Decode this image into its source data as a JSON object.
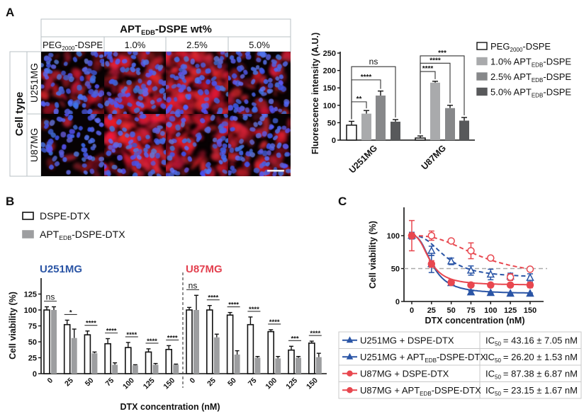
{
  "panel_labels": {
    "a": "A",
    "b": "B",
    "c": "C"
  },
  "panel_a": {
    "header": {
      "pre": "APT",
      "sub": "EDB",
      "post": "-DSPE wt%"
    },
    "columns": [
      {
        "pre": "PEG",
        "sub": "2000",
        "post": "-DSPE"
      },
      {
        "pre": "1.0%",
        "sub": "",
        "post": ""
      },
      {
        "pre": "2.5%",
        "sub": "",
        "post": ""
      },
      {
        "pre": "5.0%",
        "sub": "",
        "post": ""
      }
    ],
    "row_header": "Cell type",
    "rows": [
      "U251MG",
      "U87MG"
    ]
  },
  "chart_data": [
    {
      "id": "fluorescence",
      "type": "bar",
      "ylabel": "Fluorescence intensity (A.U.)",
      "ylim": [
        0,
        250
      ],
      "yticks": [
        0,
        50,
        100,
        150,
        200,
        250
      ],
      "categories": [
        "U251MG",
        "U87MG"
      ],
      "legend_position": "right",
      "series": [
        {
          "name": {
            "pre": "PEG",
            "sub": "2000",
            "post": "-DSPE"
          },
          "color": "#ffffff",
          "values": [
            43,
            6
          ],
          "errors": [
            11,
            6
          ]
        },
        {
          "name": {
            "pre": "1.0% APT",
            "sub": "EDB",
            "post": "-DSPE"
          },
          "color": "#a9aaac",
          "values": [
            76,
            165
          ],
          "errors": [
            9,
            4
          ]
        },
        {
          "name": {
            "pre": "2.5% APT",
            "sub": "EDB",
            "post": "-DSPE"
          },
          "color": "#87888a",
          "values": [
            128,
            92
          ],
          "errors": [
            13,
            8
          ]
        },
        {
          "name": {
            "pre": "5.0% APT",
            "sub": "EDB",
            "post": "-DSPE"
          },
          "color": "#58595b",
          "values": [
            53,
            56
          ],
          "errors": [
            6,
            9
          ]
        }
      ],
      "significance": [
        {
          "category": 0,
          "from": 0,
          "to": 1,
          "level": 110,
          "label": "**"
        },
        {
          "category": 0,
          "from": 0,
          "to": 2,
          "level": 173,
          "label": "****"
        },
        {
          "category": 0,
          "from": 0,
          "to": 3,
          "level": 211,
          "label": "ns"
        },
        {
          "category": 1,
          "from": 0,
          "to": 1,
          "level": 197,
          "label": "****"
        },
        {
          "category": 1,
          "from": 0,
          "to": 2,
          "level": 221,
          "label": "****"
        },
        {
          "category": 1,
          "from": 0,
          "to": 3,
          "level": 242,
          "label": "***"
        }
      ]
    },
    {
      "id": "viability-bars",
      "type": "bar",
      "xlabel": "DTX concentration (nM)",
      "ylabel": "Cell viability (%)",
      "ylim": [
        0,
        150
      ],
      "yticks": [
        0,
        25,
        50,
        75,
        100,
        125
      ],
      "categories": [
        "0",
        "25",
        "50",
        "75",
        "100",
        "125",
        "150"
      ],
      "legend_position": "top-left",
      "legend": [
        {
          "name": {
            "pre": "DSPE-DTX",
            "sub": "",
            "post": ""
          },
          "color": "#ffffff"
        },
        {
          "name": {
            "pre": "APT",
            "sub": "EDB",
            "post": "-DSPE-DTX"
          },
          "color": "#9d9ea0"
        }
      ],
      "groups": [
        {
          "title": "U251MG",
          "color": "#2b55a5",
          "series": [
            {
              "values": [
                100,
                77,
                61,
                47,
                41,
                34,
                38
              ],
              "errors": [
                5,
                7,
                6,
                8,
                8,
                5,
                6
              ]
            },
            {
              "values": [
                100,
                56,
                32,
                14,
                13,
                14,
                14
              ],
              "errors": [
                5,
                14,
                2,
                3,
                1,
                2,
                1
              ]
            }
          ],
          "significance": [
            "ns",
            "*",
            "****",
            "****",
            "****",
            "****",
            "****"
          ]
        },
        {
          "title": "U87MG",
          "color": "#e3404f",
          "series": [
            {
              "values": [
                100,
                100,
                92,
                77,
                66,
                37,
                48
              ],
              "errors": [
                4,
                7,
                4,
                12,
                3,
                6,
                3
              ]
            },
            {
              "values": [
                100,
                57,
                30,
                25,
                24,
                25,
                26
              ],
              "errors": [
                23,
                5,
                6,
                2,
                3,
                2,
                6
              ]
            }
          ],
          "significance": [
            "ns",
            "****",
            "****",
            "****",
            "****",
            "***",
            "****"
          ]
        }
      ]
    },
    {
      "id": "viability-curves",
      "type": "line",
      "xlabel": "DTX concentration (nM)",
      "ylabel": "Cell viability (%)",
      "xlim": [
        0,
        160
      ],
      "ylim": [
        0,
        140
      ],
      "xticks": [
        0,
        25,
        50,
        75,
        100,
        125,
        150
      ],
      "yticks": [
        0,
        50,
        100
      ],
      "reference_line": 50,
      "x": [
        0,
        25,
        50,
        75,
        100,
        125,
        150
      ],
      "series": [
        {
          "name": {
            "pre": "U251MG + DSPE-DTX",
            "sub": "",
            "post": ""
          },
          "color": "#2a55a6",
          "marker": "triangle-open",
          "line": "dashed",
          "values": [
            100,
            77,
            61,
            47,
            41,
            38,
            36
          ],
          "errors": [
            5,
            7,
            5,
            7,
            8,
            5,
            6
          ],
          "ic50": {
            "label": "IC",
            "sub": "50",
            "text": "=  43.16 ± 7.05 nM",
            "value": 43.16
          }
        },
        {
          "name": {
            "pre": "U251MG + APT",
            "sub": "EDB",
            "post": "-DSPE-DTX"
          },
          "color": "#2a55a6",
          "marker": "triangle-filled",
          "line": "solid",
          "values": [
            100,
            57,
            28,
            14,
            13,
            12,
            12
          ],
          "errors": [
            5,
            13,
            3,
            2,
            1,
            1,
            1
          ],
          "ic50": {
            "label": "IC",
            "sub": "50",
            "text": "=  26.20 ± 1.53 nM",
            "value": 26.2
          }
        },
        {
          "name": {
            "pre": "U87MG + DSPE-DTX",
            "sub": "",
            "post": ""
          },
          "color": "#e8474f",
          "marker": "circle-open",
          "line": "dashed",
          "values": [
            100,
            100,
            92,
            77,
            66,
            37,
            49
          ],
          "errors": [
            4,
            7,
            3,
            12,
            3,
            5,
            3
          ],
          "ic50": {
            "label": "IC",
            "sub": "50",
            "text": "=  87.38 ± 6.87 nM",
            "value": 87.38
          }
        },
        {
          "name": {
            "pre": "U87MG + APT",
            "sub": "EDB",
            "post": "-DSPE-DTX"
          },
          "color": "#e8474f",
          "marker": "circle-filled",
          "line": "solid",
          "values": [
            100,
            57,
            29,
            25,
            25,
            25,
            25
          ],
          "errors": [
            23,
            5,
            4,
            2,
            2,
            2,
            4
          ],
          "ic50": {
            "label": "IC",
            "sub": "50",
            "text": "=  23.15 ± 1.67 nM",
            "value": 23.15
          }
        }
      ]
    }
  ]
}
